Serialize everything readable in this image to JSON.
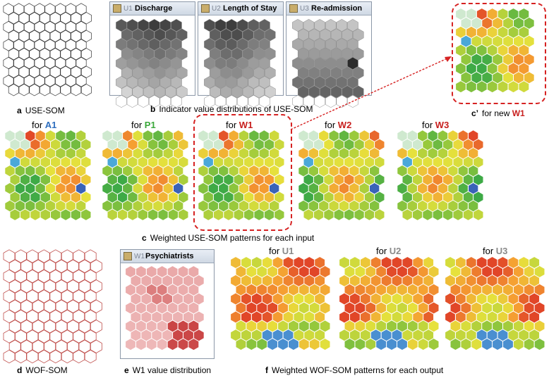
{
  "captions": {
    "a": {
      "letter": "a",
      "text": "USE-SOM"
    },
    "b": {
      "letter": "b",
      "text": "Indicator value distributions of USE-SOM"
    },
    "c_prime": {
      "letter": "c’",
      "text": "for new",
      "tag": "W1"
    },
    "c": {
      "letter": "c",
      "text": "Weighted USE-SOM patterns for each input"
    },
    "d": {
      "letter": "d",
      "text": "WOF-SOM"
    },
    "e": {
      "letter": "e",
      "text": "W1 value distribution"
    },
    "f": {
      "letter": "f",
      "text": "Weighted WOF-SOM patterns for each output"
    }
  },
  "windows": [
    {
      "id": "U1",
      "title": "Discharge"
    },
    {
      "id": "U2",
      "title": "Length of Stay"
    },
    {
      "id": "U3",
      "title": "Re-admission"
    },
    {
      "id": "W1",
      "title": "Psychiatrists"
    }
  ],
  "input_panels": [
    {
      "prefix": "for",
      "tag": "A1",
      "color": "blue"
    },
    {
      "prefix": "for",
      "tag": "P1",
      "color": "green"
    },
    {
      "prefix": "for",
      "tag": "W1",
      "color": "red"
    },
    {
      "prefix": "for",
      "tag": "W2",
      "color": "red"
    },
    {
      "prefix": "for",
      "tag": "W3",
      "color": "red"
    }
  ],
  "output_panels": [
    {
      "prefix": "for",
      "tag": "U1",
      "color": "gray"
    },
    {
      "prefix": "for",
      "tag": "U2",
      "color": "gray"
    },
    {
      "prefix": "for",
      "tag": "U3",
      "color": "gray"
    }
  ],
  "colors": {
    "accent_red": "#c8201f",
    "tag_blue": "#2f6fbf",
    "tag_green": "#3aa83a",
    "tag_gray": "#8a8a8a",
    "outline_red": "#d62222"
  }
}
